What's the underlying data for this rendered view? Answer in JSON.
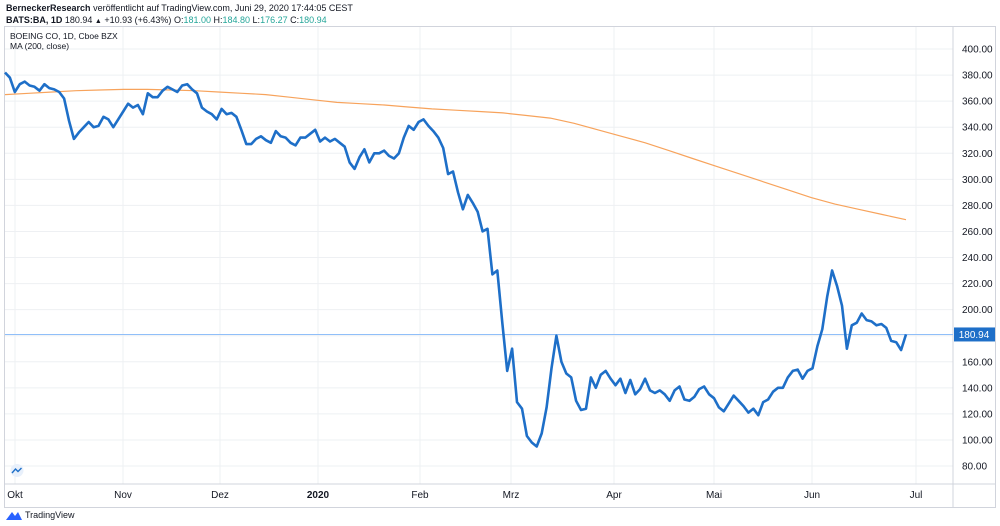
{
  "header": {
    "publisher": "BerneckerResearch",
    "published_text": "veröffentlicht auf TradingView.com, Juni 29, 2020 17:44:05 CEST",
    "symbol": "BATS:BA, 1D",
    "last": "180.94",
    "change": "+10.93 (+6.43%)",
    "open_label": "O:",
    "open": "181.00",
    "high_label": "H:",
    "high": "184.80",
    "low_label": "L:",
    "low": "176.27",
    "close_label": "C:",
    "close": "180.94"
  },
  "legend": {
    "instrument": "BOEING CO, 1D, Cboe BZX",
    "indicator": "MA (200, close)"
  },
  "footer": {
    "brand": "TradingView"
  },
  "colors": {
    "price": "#1e6fc8",
    "ma": "#f7a35c",
    "price_line": "#90bff9",
    "price_tag": "#1e6fc8",
    "grid": "#eef0f3"
  },
  "chart_data": {
    "type": "line",
    "title": "BOEING CO, 1D, Cboe BZX",
    "ylim": [
      65,
      410
    ],
    "y_ticks": [
      "400.00",
      "380.00",
      "360.00",
      "340.00",
      "320.00",
      "300.00",
      "280.00",
      "260.00",
      "240.00",
      "220.00",
      "200.00",
      "180.00",
      "160.00",
      "140.00",
      "120.00",
      "100.00",
      "80.00"
    ],
    "x_ticks": [
      "Okt",
      "Nov",
      "Dez",
      "2020",
      "Feb",
      "Mrz",
      "Apr",
      "Mai",
      "Jun",
      "Jul"
    ],
    "last_value_label": "180.94",
    "last_value": 180.94,
    "series": [
      {
        "role": "price",
        "values": [
          382,
          378,
          367,
          373,
          375,
          372,
          371,
          368,
          373,
          370,
          369,
          367,
          362,
          345,
          331,
          336,
          340,
          344,
          340,
          341,
          348,
          346,
          340,
          346,
          352,
          358,
          355,
          357,
          350,
          366,
          363,
          363,
          368,
          371,
          369,
          367,
          372,
          373,
          369,
          366,
          355,
          352,
          350,
          346,
          354,
          350,
          351,
          348,
          338,
          327,
          327,
          331,
          333,
          330,
          328,
          337,
          333,
          332,
          328,
          326,
          332,
          332,
          335,
          338,
          329,
          332,
          329,
          331,
          328,
          325,
          313,
          308,
          317,
          323,
          313,
          320,
          320,
          322,
          318,
          316,
          320,
          332,
          341,
          338,
          344,
          346,
          341,
          337,
          332,
          324,
          304,
          306,
          290,
          277,
          288,
          282,
          275,
          260,
          262,
          227,
          230,
          190,
          153,
          170,
          129,
          124,
          103,
          98,
          95,
          105,
          125,
          155,
          180,
          160,
          151,
          148,
          130,
          123,
          124,
          148,
          140,
          150,
          153,
          147,
          142,
          147,
          136,
          146,
          135,
          139,
          147,
          138,
          136,
          138,
          135,
          130,
          138,
          141,
          131,
          130,
          133,
          139,
          141,
          135,
          132,
          125,
          122,
          128,
          134,
          130,
          126,
          121,
          124,
          119,
          129,
          131,
          137,
          140,
          140,
          148,
          153,
          154,
          147,
          153,
          155,
          172,
          185,
          210,
          230,
          218,
          203,
          170,
          188,
          190,
          197,
          192,
          191,
          188,
          189,
          186,
          176,
          175,
          169,
          181
        ]
      },
      {
        "role": "moving_average",
        "values": [
          365,
          366,
          367,
          368,
          368.5,
          369,
          369,
          368.5,
          368,
          367,
          366,
          365,
          363,
          361,
          359,
          358,
          357,
          355.5,
          354,
          353,
          352,
          351,
          349,
          347,
          343,
          338,
          333,
          328,
          322,
          316,
          310,
          304,
          298,
          292,
          286,
          281,
          277,
          273,
          269
        ]
      }
    ]
  }
}
